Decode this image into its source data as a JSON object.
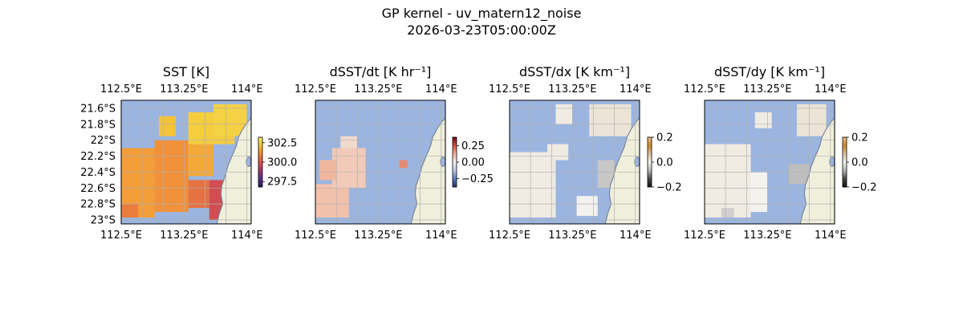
{
  "figure": {
    "title_line1": "GP kernel - uv_matern12_noise",
    "title_line2": "2026-03-23T05:00:00Z"
  },
  "colors": {
    "ocean": "#9bb5e0",
    "land": "#efefdc",
    "coast": "#7a8699",
    "grid": "#b0b0b0",
    "sst_cmap": [
      "#1c1c4a",
      "#5a2f82",
      "#a8366e",
      "#d9534a",
      "#f08a3a",
      "#f5c634",
      "#f7f17a"
    ],
    "dt_cmap": [
      "#1f2f6b",
      "#5a7ec8",
      "#b9cdea",
      "#f4f1ee",
      "#f1b49a",
      "#d1513b",
      "#6e0b13"
    ],
    "dxdy_cmap": [
      "#121212",
      "#4a4a4a",
      "#b8b8b8",
      "#f4f2ef",
      "#d8c2a0",
      "#c9882e",
      "#f0c28a"
    ]
  },
  "chart_data": [
    {
      "type": "heatmap",
      "title": "SST [K]",
      "colorbar": {
        "min": 296.8,
        "max": 303.2,
        "ticks": [
          302.5,
          300.0,
          297.5
        ],
        "tick_labels": [
          "302.5",
          "300.0",
          "297.5"
        ]
      },
      "xticks": [
        "112.5°E",
        "113.25°E",
        "114°E"
      ],
      "yticks": [
        "21.6°S",
        "21.8°S",
        "22°S",
        "22.2°S",
        "22.4°S",
        "22.6°S",
        "22.8°S",
        "23°S"
      ],
      "lon_range": [
        112.5,
        114.05
      ],
      "lat_range": [
        -23.05,
        -21.5
      ],
      "regions": [
        {
          "lon": [
            112.5,
            112.9
          ],
          "lat": [
            -22.1,
            -22.97
          ],
          "value": 301.4
        },
        {
          "lon": [
            112.9,
            113.3
          ],
          "lat": [
            -22.0,
            -22.9
          ],
          "value": 301.2
        },
        {
          "lon": [
            113.3,
            113.6
          ],
          "lat": [
            -22.05,
            -22.45
          ],
          "value": 301.6
        },
        {
          "lon": [
            113.3,
            113.55
          ],
          "lat": [
            -22.5,
            -22.85
          ],
          "value": 300.6
        },
        {
          "lon": [
            113.55,
            113.95
          ],
          "lat": [
            -22.5,
            -23.0
          ],
          "value": 299.8
        },
        {
          "lon": [
            113.3,
            113.85
          ],
          "lat": [
            -21.65,
            -22.05
          ],
          "value": 302.3
        },
        {
          "lon": [
            113.6,
            114.0
          ],
          "lat": [
            -21.55,
            -21.95
          ],
          "value": 302.4
        },
        {
          "lon": [
            112.95,
            113.15
          ],
          "lat": [
            -21.7,
            -21.95
          ],
          "value": 302.1
        },
        {
          "lon": [
            112.5,
            112.7
          ],
          "lat": [
            -22.8,
            -22.97
          ],
          "value": 300.8
        },
        {
          "lon": [
            114.0,
            114.05
          ],
          "lat": [
            -22.05,
            -22.2
          ],
          "value": 303.2
        }
      ]
    },
    {
      "type": "heatmap",
      "title": "dSST/dt [K hr⁻¹]",
      "colorbar": {
        "min": -0.38,
        "max": 0.38,
        "ticks": [
          0.25,
          0.0,
          -0.25
        ],
        "tick_labels": [
          "0.25",
          "0.00",
          "−0.25"
        ]
      },
      "xticks": [
        "112.5°E",
        "113.25°E",
        "114°E"
      ],
      "lon_range": [
        112.5,
        114.05
      ],
      "lat_range": [
        -23.05,
        -21.5
      ],
      "regions": [
        {
          "lon": [
            112.5,
            112.9
          ],
          "lat": [
            -22.55,
            -22.97
          ],
          "value": 0.1
        },
        {
          "lon": [
            112.7,
            113.1
          ],
          "lat": [
            -22.1,
            -22.6
          ],
          "value": 0.08
        },
        {
          "lon": [
            112.55,
            112.75
          ],
          "lat": [
            -22.25,
            -22.5
          ],
          "value": 0.12
        },
        {
          "lon": [
            113.5,
            113.6
          ],
          "lat": [
            -22.25,
            -22.35
          ],
          "value": 0.18
        },
        {
          "lon": [
            112.8,
            113.0
          ],
          "lat": [
            -21.95,
            -22.1
          ],
          "value": 0.05
        }
      ]
    },
    {
      "type": "heatmap",
      "title": "dSST/dx [K km⁻¹]",
      "colorbar": {
        "min": -0.2,
        "max": 0.2,
        "ticks": [
          0.2,
          0.0,
          -0.2
        ],
        "tick_labels": [
          "0.2",
          "0.0",
          "−0.2"
        ]
      },
      "xticks": [
        "112.5°E",
        "113.25°E",
        "114°E"
      ],
      "lon_range": [
        112.5,
        114.05
      ],
      "lat_range": [
        -23.05,
        -21.5
      ],
      "regions": [
        {
          "lon": [
            112.5,
            113.05
          ],
          "lat": [
            -22.15,
            -22.97
          ],
          "value": 0.01
        },
        {
          "lon": [
            112.95,
            113.2
          ],
          "lat": [
            -22.05,
            -22.25
          ],
          "value": 0.01
        },
        {
          "lon": [
            113.55,
            113.75
          ],
          "lat": [
            -22.25,
            -22.6
          ],
          "value": -0.05
        },
        {
          "lon": [
            113.45,
            113.95
          ],
          "lat": [
            -21.55,
            -21.95
          ],
          "value": 0.02
        },
        {
          "lon": [
            113.05,
            113.25
          ],
          "lat": [
            -21.55,
            -21.8
          ],
          "value": 0.01
        },
        {
          "lon": [
            113.3,
            113.55
          ],
          "lat": [
            -22.7,
            -22.95
          ],
          "value": 0.0
        }
      ]
    },
    {
      "type": "heatmap",
      "title": "dSST/dy [K km⁻¹]",
      "colorbar": {
        "min": -0.2,
        "max": 0.2,
        "ticks": [
          0.2,
          0.0,
          -0.2
        ],
        "tick_labels": [
          "0.2",
          "0.0",
          "−0.2"
        ]
      },
      "xticks": [
        "112.5°E",
        "113.25°E",
        "114°E"
      ],
      "lon_range": [
        112.5,
        114.05
      ],
      "lat_range": [
        -23.05,
        -21.5
      ],
      "regions": [
        {
          "lon": [
            112.5,
            113.05
          ],
          "lat": [
            -22.05,
            -22.97
          ],
          "value": 0.01
        },
        {
          "lon": [
            113.05,
            113.25
          ],
          "lat": [
            -22.4,
            -22.9
          ],
          "value": 0.0
        },
        {
          "lon": [
            113.5,
            113.75
          ],
          "lat": [
            -22.3,
            -22.55
          ],
          "value": -0.06
        },
        {
          "lon": [
            113.6,
            113.95
          ],
          "lat": [
            -21.55,
            -21.95
          ],
          "value": 0.02
        },
        {
          "lon": [
            112.7,
            112.85
          ],
          "lat": [
            -22.85,
            -22.97
          ],
          "value": -0.04
        },
        {
          "lon": [
            113.1,
            113.3
          ],
          "lat": [
            -21.65,
            -21.85
          ],
          "value": 0.01
        }
      ]
    }
  ]
}
